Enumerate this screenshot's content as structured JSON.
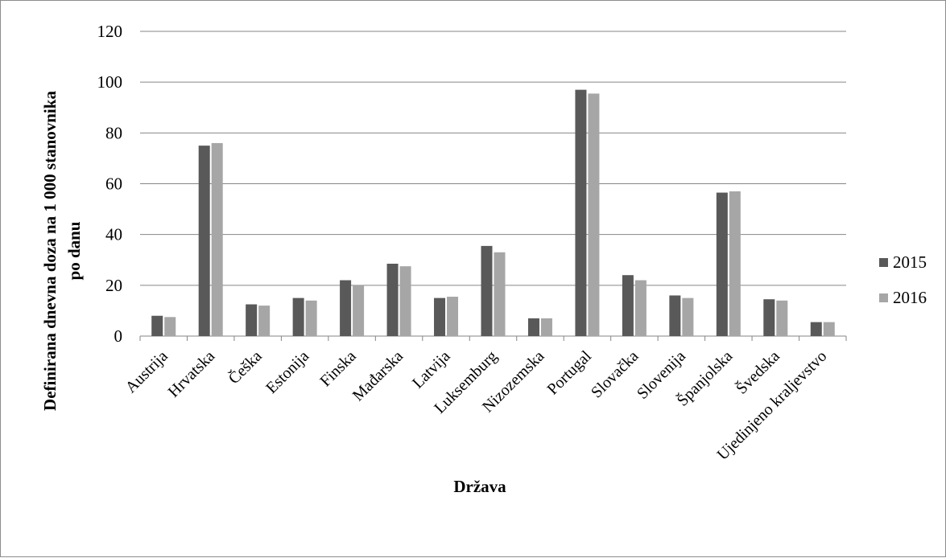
{
  "chart_data": {
    "type": "bar",
    "xlabel": "Država",
    "ylabel_lines": [
      "Definirana  dnevna doza na 1 000 stanovnika",
      "po danu"
    ],
    "ylim": [
      0,
      120
    ],
    "yticks": [
      "0",
      "20",
      "40",
      "60",
      "80",
      "100",
      "120"
    ],
    "grid": true,
    "legend_position": "right",
    "categories": [
      "Austrija",
      "Hrvatska",
      "Češka",
      "Estonija",
      "Finska",
      "Mađarska",
      "Latvija",
      "Luksemburg",
      "Nizozemska",
      "Portugal",
      "Slovačka",
      "Slovenija",
      "Španjolska",
      "Švedska",
      "Ujedinjeno kraljevstvo"
    ],
    "series": [
      {
        "name": "2015",
        "color": "#595959",
        "values": [
          8,
          75,
          12.5,
          15,
          22,
          28.5,
          15,
          35.5,
          7,
          97,
          24,
          16,
          56.5,
          14.5,
          5.5
        ]
      },
      {
        "name": "2016",
        "color": "#a6a6a6",
        "values": [
          7.5,
          76,
          12,
          14,
          20,
          27.5,
          15.5,
          33,
          7,
          95.5,
          22,
          15,
          57,
          14,
          5.5
        ]
      }
    ]
  }
}
